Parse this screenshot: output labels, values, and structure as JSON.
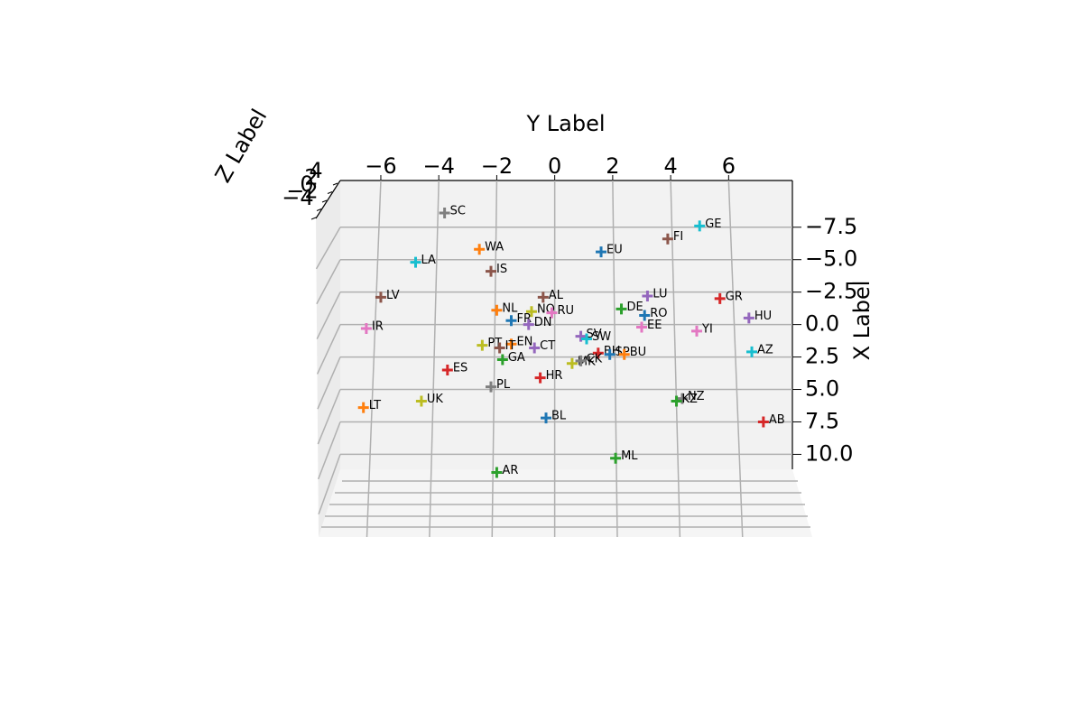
{
  "chart_data": {
    "type": "scatter3d",
    "xlabel": "Y Label",
    "ylabel": "X Label",
    "zlabel": "Z Label",
    "xlim": [
      -7.4,
      8.2
    ],
    "ylim": [
      -11.1,
      11.5
    ],
    "xticks": [
      {
        "value": -6,
        "label": "−6"
      },
      {
        "value": -4,
        "label": "−4"
      },
      {
        "value": -2,
        "label": "−2"
      },
      0,
      2,
      4,
      6
    ],
    "yticks": [
      {
        "value": -7.5,
        "label": "−7.5"
      },
      {
        "value": -5,
        "label": "−5.0"
      },
      {
        "value": -2.5,
        "label": "−2.5"
      },
      {
        "value": 0,
        "label": "0.0"
      },
      {
        "value": 2.5,
        "label": "2.5"
      },
      {
        "value": 5,
        "label": "5.0"
      },
      {
        "value": 7.5,
        "label": "7.5"
      },
      {
        "value": 10,
        "label": "10.0"
      }
    ],
    "zticks": [
      {
        "value": -4,
        "label": "−4"
      },
      {
        "value": -2,
        "label": "−2"
      },
      {
        "value": 0,
        "label": "0"
      },
      {
        "value": 2,
        "label": "2"
      },
      {
        "value": 4,
        "label": "4"
      }
    ],
    "grid": true,
    "series": [
      {
        "name": "SC",
        "color": "#7f7f7f",
        "x": [
          -3.8
        ],
        "values": [
          -8.6
        ]
      },
      {
        "name": "GE",
        "color": "#17becf",
        "x": [
          5.0
        ],
        "values": [
          -7.6
        ]
      },
      {
        "name": "FI",
        "color": "#8c564b",
        "x": [
          3.9
        ],
        "values": [
          -6.6
        ]
      },
      {
        "name": "WA",
        "color": "#ff7f0e",
        "x": [
          -2.6
        ],
        "values": [
          -5.8
        ]
      },
      {
        "name": "EU",
        "color": "#1f77b4",
        "x": [
          1.6
        ],
        "values": [
          -5.6
        ]
      },
      {
        "name": "LA",
        "color": "#17becf",
        "x": [
          -4.8
        ],
        "values": [
          -4.8
        ]
      },
      {
        "name": "IS",
        "color": "#8c564b",
        "x": [
          -2.2
        ],
        "values": [
          -4.1
        ]
      },
      {
        "name": "LV",
        "color": "#8c564b",
        "x": [
          -6.0
        ],
        "values": [
          -2.1
        ]
      },
      {
        "name": "AL",
        "color": "#8c564b",
        "x": [
          -0.4
        ],
        "values": [
          -2.1
        ]
      },
      {
        "name": "LU",
        "color": "#9467bd",
        "x": [
          3.2
        ],
        "values": [
          -2.2
        ]
      },
      {
        "name": "GR",
        "color": "#d62728",
        "x": [
          5.7
        ],
        "values": [
          -2.0
        ]
      },
      {
        "name": "NL",
        "color": "#ff7f0e",
        "x": [
          -2.0
        ],
        "values": [
          -1.1
        ]
      },
      {
        "name": "NO",
        "color": "#bcbd22",
        "x": [
          -0.8
        ],
        "values": [
          -1.0
        ]
      },
      {
        "name": "RU",
        "color": "#e377c2",
        "x": [
          -0.1
        ],
        "values": [
          -0.9
        ]
      },
      {
        "name": "DE",
        "color": "#2ca02c",
        "x": [
          2.3
        ],
        "values": [
          -1.2
        ]
      },
      {
        "name": "RO",
        "color": "#1f77b4",
        "x": [
          3.1
        ],
        "values": [
          -0.7
        ]
      },
      {
        "name": "HU",
        "color": "#9467bd",
        "x": [
          6.7
        ],
        "values": [
          -0.5
        ]
      },
      {
        "name": "FR",
        "color": "#1f77b4",
        "x": [
          -1.5
        ],
        "values": [
          -0.3
        ]
      },
      {
        "name": "DN",
        "color": "#9467bd",
        "x": [
          -0.9
        ],
        "values": [
          0.0
        ]
      },
      {
        "name": "EE",
        "color": "#e377c2",
        "x": [
          3.0
        ],
        "values": [
          0.2
        ]
      },
      {
        "name": "IR",
        "color": "#e377c2",
        "x": [
          -6.5
        ],
        "values": [
          0.3
        ]
      },
      {
        "name": "YI",
        "color": "#e377c2",
        "x": [
          4.9
        ],
        "values": [
          0.5
        ]
      },
      {
        "name": "SV",
        "color": "#9467bd",
        "x": [
          0.9
        ],
        "values": [
          0.9
        ]
      },
      {
        "name": "SW",
        "color": "#17becf",
        "x": [
          1.1
        ],
        "values": [
          1.1
        ]
      },
      {
        "name": "PT",
        "color": "#bcbd22",
        "x": [
          -2.5
        ],
        "values": [
          1.6
        ]
      },
      {
        "name": "EN",
        "color": "#ff7f0e",
        "x": [
          -1.5
        ],
        "values": [
          1.5
        ]
      },
      {
        "name": "IT",
        "color": "#8c564b",
        "x": [
          -1.9
        ],
        "values": [
          1.8
        ]
      },
      {
        "name": "CT",
        "color": "#9467bd",
        "x": [
          -0.7
        ],
        "values": [
          1.8
        ]
      },
      {
        "name": "BH",
        "color": "#d62728",
        "x": [
          1.5
        ],
        "values": [
          2.2
        ]
      },
      {
        "name": "SP",
        "color": "#1f77b4",
        "x": [
          1.9
        ],
        "values": [
          2.3
        ]
      },
      {
        "name": "BU",
        "color": "#ff7f0e",
        "x": [
          2.4
        ],
        "values": [
          2.3
        ]
      },
      {
        "name": "AZ",
        "color": "#17becf",
        "x": [
          6.8
        ],
        "values": [
          2.1
        ]
      },
      {
        "name": "GA",
        "color": "#2ca02c",
        "x": [
          -1.8
        ],
        "values": [
          2.7
        ]
      },
      {
        "name": "MK",
        "color": "#bcbd22",
        "x": [
          0.6
        ],
        "values": [
          3.0
        ]
      },
      {
        "name": "CK",
        "color": "#7f7f7f",
        "x": [
          0.9
        ],
        "values": [
          2.8
        ]
      },
      {
        "name": "ES",
        "color": "#d62728",
        "x": [
          -3.7
        ],
        "values": [
          3.5
        ]
      },
      {
        "name": "HR",
        "color": "#d62728",
        "x": [
          -0.5
        ],
        "values": [
          4.1
        ]
      },
      {
        "name": "PL",
        "color": "#7f7f7f",
        "x": [
          -2.2
        ],
        "values": [
          4.8
        ]
      },
      {
        "name": "UK",
        "color": "#bcbd22",
        "x": [
          -4.6
        ],
        "values": [
          5.9
        ]
      },
      {
        "name": "NZ",
        "color": "#7f7f7f",
        "x": [
          4.4
        ],
        "values": [
          5.7
        ]
      },
      {
        "name": "KZ",
        "color": "#2ca02c",
        "x": [
          4.2
        ],
        "values": [
          5.9
        ]
      },
      {
        "name": "LT",
        "color": "#ff7f0e",
        "x": [
          -6.6
        ],
        "values": [
          6.4
        ]
      },
      {
        "name": "BL",
        "color": "#1f77b4",
        "x": [
          -0.3
        ],
        "values": [
          7.2
        ]
      },
      {
        "name": "AB",
        "color": "#d62728",
        "x": [
          7.2
        ],
        "values": [
          7.5
        ]
      },
      {
        "name": "ML",
        "color": "#2ca02c",
        "x": [
          2.1
        ],
        "values": [
          10.3
        ]
      },
      {
        "name": "AR",
        "color": "#2ca02c",
        "x": [
          -2.0
        ],
        "values": [
          11.4
        ]
      }
    ]
  }
}
